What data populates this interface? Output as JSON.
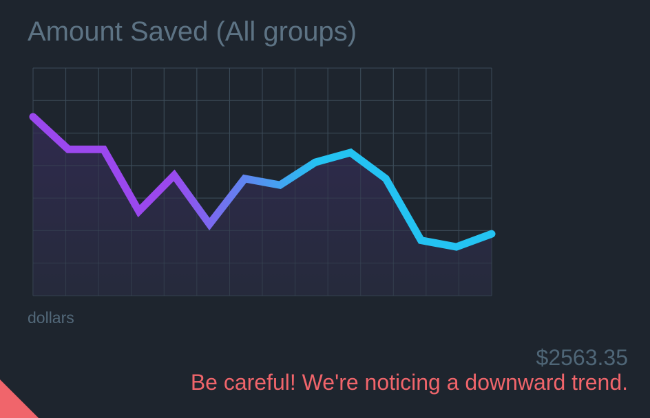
{
  "header": {
    "title": "Amount Saved (All groups)"
  },
  "chart_data": {
    "type": "line",
    "ylabel": "dollars",
    "grid": true,
    "x_count": 14,
    "y_gridlines": 7,
    "values": [
      5.5,
      4.5,
      4.5,
      2.6,
      3.7,
      2.2,
      3.6,
      3.4,
      4.1,
      4.4,
      3.6,
      1.7,
      1.5,
      1.9
    ],
    "ylim": [
      0,
      7
    ],
    "colors": {
      "line_start": "#9b48ee",
      "line_end": "#24c3f2",
      "grid": "#3c4c59",
      "area": "#2d2b48"
    }
  },
  "summary": {
    "total": "$2563.35",
    "warning": "Be careful! We're noticing a downward trend."
  },
  "decoration": {
    "corner_color": "#f0656b"
  }
}
